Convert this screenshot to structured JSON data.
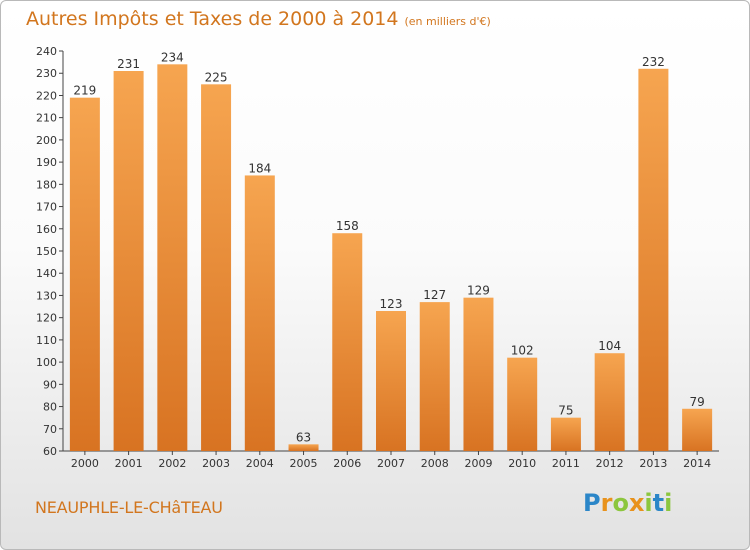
{
  "header": {
    "title": "Autres Impôts et Taxes de 2000 à 2014",
    "subtitle": "(en milliers d'€)"
  },
  "footer": {
    "town": "NEAUPHLE-LE-CHâTEAU",
    "logo_text": "Proxiti"
  },
  "colors": {
    "title": "#d2761e",
    "bar_light": "#f6a550",
    "bar_dark": "#d87322",
    "logo_letters": [
      "#2b86c8",
      "#e8921c",
      "#8cc63e",
      "#e8921c",
      "#8cc63e",
      "#2b86c8",
      "#8cc63e"
    ]
  },
  "chart_data": {
    "type": "bar",
    "title": "Autres Impôts et Taxes de 2000 à 2014",
    "categories": [
      "2000",
      "2001",
      "2002",
      "2003",
      "2004",
      "2005",
      "2006",
      "2007",
      "2008",
      "2009",
      "2010",
      "2011",
      "2012",
      "2013",
      "2014"
    ],
    "values": [
      219,
      231,
      234,
      225,
      184,
      63,
      158,
      123,
      127,
      129,
      102,
      75,
      104,
      232,
      79
    ],
    "ylim": [
      60,
      240
    ],
    "yticks": [
      60,
      70,
      80,
      90,
      100,
      110,
      120,
      130,
      140,
      150,
      160,
      170,
      180,
      190,
      200,
      210,
      220,
      230,
      240
    ],
    "grid": false,
    "data_labels": true
  }
}
